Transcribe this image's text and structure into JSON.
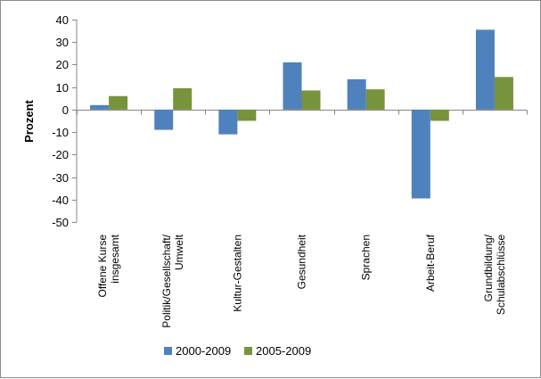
{
  "chart_data": {
    "type": "bar",
    "title": "",
    "xlabel": "",
    "ylabel": "Prozent",
    "ylim": [
      -50,
      40
    ],
    "ytick_step": 10,
    "grid": false,
    "legend_position": "bottom",
    "categories": [
      [
        "Offene Kurse",
        "insgesamt"
      ],
      [
        "Politik/Gesellschaft/",
        "Umwelt"
      ],
      [
        "Kultur-Gestalten"
      ],
      [
        "Gesundheit"
      ],
      [
        "Sprachen"
      ],
      [
        "Arbeit-Beruf"
      ],
      [
        "Grundbildung/",
        "Schulabschlüsse"
      ]
    ],
    "series": [
      {
        "name": "2000-2009",
        "color": "#4f81bd",
        "values": [
          2,
          -9,
          -11,
          21,
          13.5,
          -39.5,
          35.5
        ]
      },
      {
        "name": "2005-2009",
        "color": "#77933c",
        "values": [
          6,
          9.5,
          -5,
          8.5,
          9,
          -5,
          14.5
        ]
      }
    ]
  }
}
